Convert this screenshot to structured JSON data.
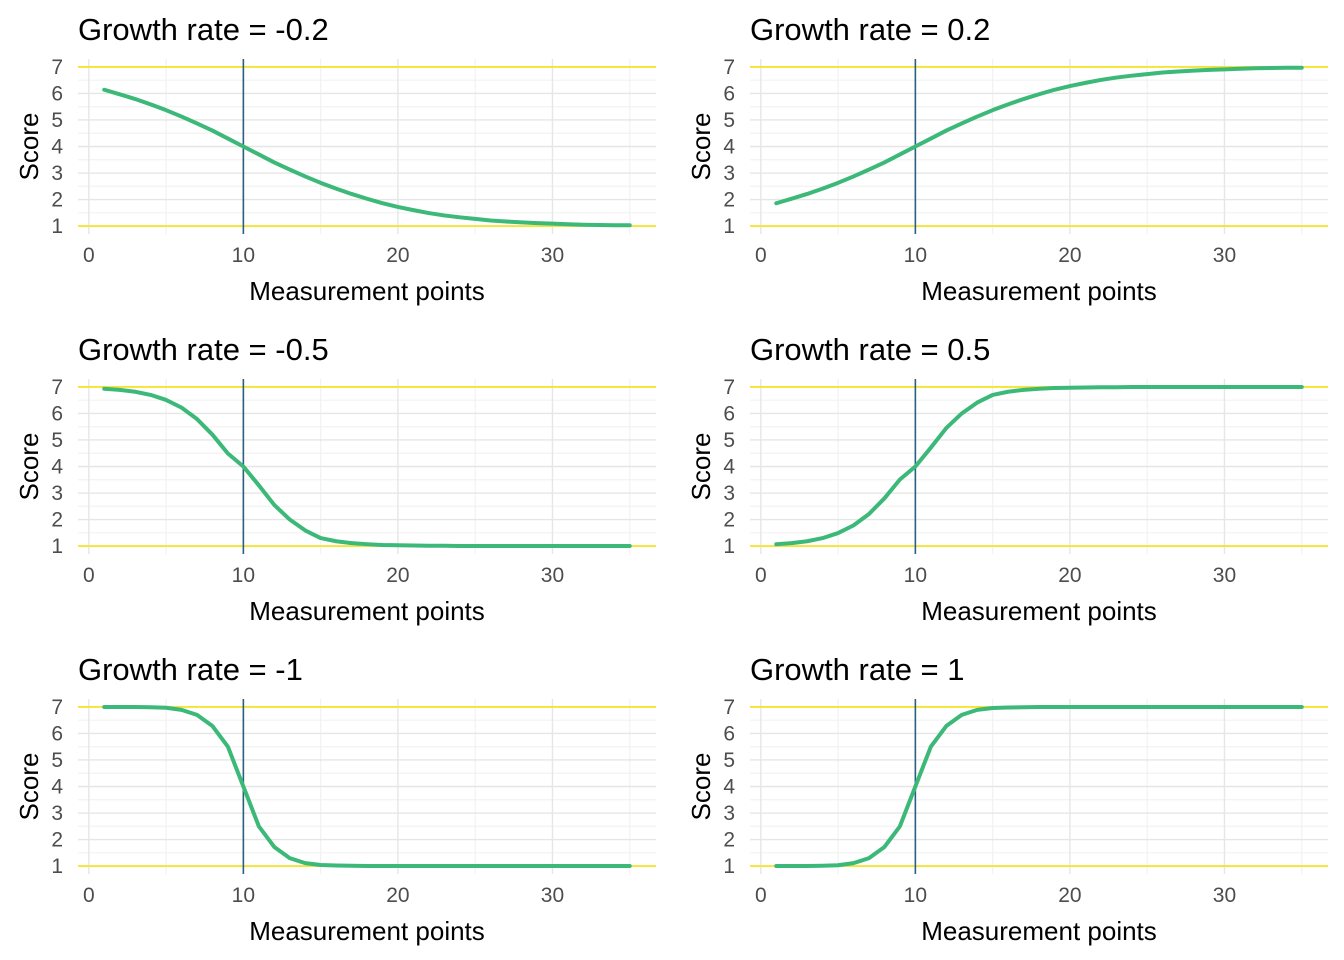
{
  "colors": {
    "curve": "#3cb878",
    "bound": "#f5e532",
    "midline": "#2b5f80",
    "grid_major": "#e6e6e6",
    "grid_minor": "#f2f2f2",
    "tick_text": "#4d4d4d"
  },
  "chart_data": [
    {
      "type": "line",
      "title": "Growth rate = -0.2",
      "growth_rate": -0.2,
      "xlabel": "Measurement points",
      "ylabel": "Score",
      "xlim": [
        -0.7,
        36.7
      ],
      "ylim": [
        0.7,
        7.3
      ],
      "x_ticks": [
        "0",
        "10",
        "20",
        "30"
      ],
      "y_ticks": [
        "1",
        "2",
        "3",
        "4",
        "5",
        "6",
        "7"
      ],
      "upper_bound": 7,
      "lower_bound": 1,
      "midpoint_x": 10,
      "grid": true,
      "x": [
        1,
        2,
        3,
        4,
        5,
        6,
        7,
        8,
        9,
        10,
        11,
        12,
        13,
        14,
        15,
        16,
        17,
        18,
        19,
        20,
        21,
        22,
        23,
        24,
        25,
        26,
        27,
        28,
        29,
        30,
        31,
        32,
        33,
        34,
        35
      ],
      "y": [
        6.14,
        5.97,
        5.79,
        5.59,
        5.37,
        5.13,
        4.87,
        4.6,
        4.3,
        4.0,
        3.7,
        3.4,
        3.13,
        2.87,
        2.63,
        2.41,
        2.21,
        2.03,
        1.86,
        1.72,
        1.6,
        1.49,
        1.4,
        1.33,
        1.27,
        1.21,
        1.17,
        1.14,
        1.11,
        1.09,
        1.07,
        1.05,
        1.04,
        1.03,
        1.03
      ]
    },
    {
      "type": "line",
      "title": "Growth rate = 0.2",
      "growth_rate": 0.2,
      "xlabel": "Measurement points",
      "ylabel": "Score",
      "xlim": [
        -0.7,
        36.7
      ],
      "ylim": [
        0.7,
        7.3
      ],
      "x_ticks": [
        "0",
        "10",
        "20",
        "30"
      ],
      "y_ticks": [
        "1",
        "2",
        "3",
        "4",
        "5",
        "6",
        "7"
      ],
      "upper_bound": 7,
      "lower_bound": 1,
      "midpoint_x": 10,
      "grid": true,
      "x": [
        1,
        2,
        3,
        4,
        5,
        6,
        7,
        8,
        9,
        10,
        11,
        12,
        13,
        14,
        15,
        16,
        17,
        18,
        19,
        20,
        21,
        22,
        23,
        24,
        25,
        26,
        27,
        28,
        29,
        30,
        31,
        32,
        33,
        34,
        35
      ],
      "y": [
        1.86,
        2.03,
        2.21,
        2.41,
        2.63,
        2.87,
        3.13,
        3.4,
        3.7,
        4.0,
        4.3,
        4.6,
        4.87,
        5.13,
        5.37,
        5.59,
        5.79,
        5.97,
        6.14,
        6.28,
        6.4,
        6.51,
        6.6,
        6.67,
        6.73,
        6.79,
        6.83,
        6.86,
        6.89,
        6.91,
        6.93,
        6.95,
        6.96,
        6.97,
        6.97
      ]
    },
    {
      "type": "line",
      "title": "Growth rate = -0.5",
      "growth_rate": -0.5,
      "xlabel": "Measurement points",
      "ylabel": "Score",
      "xlim": [
        -0.7,
        36.7
      ],
      "ylim": [
        0.7,
        7.3
      ],
      "x_ticks": [
        "0",
        "10",
        "20",
        "30"
      ],
      "y_ticks": [
        "1",
        "2",
        "3",
        "4",
        "5",
        "6",
        "7"
      ],
      "upper_bound": 7,
      "lower_bound": 1,
      "midpoint_x": 10,
      "grid": true,
      "x": [
        1,
        2,
        3,
        4,
        5,
        6,
        7,
        8,
        9,
        10,
        11,
        12,
        13,
        14,
        15,
        16,
        17,
        18,
        19,
        20,
        21,
        22,
        23,
        24,
        25,
        26,
        27,
        28,
        29,
        30,
        31,
        32,
        33,
        34,
        35
      ],
      "y": [
        6.93,
        6.89,
        6.82,
        6.7,
        6.51,
        6.22,
        5.79,
        5.2,
        4.49,
        4.0,
        3.29,
        2.55,
        2.0,
        1.59,
        1.3,
        1.18,
        1.11,
        1.07,
        1.04,
        1.03,
        1.02,
        1.01,
        1.01,
        1.0,
        1.0,
        1.0,
        1.0,
        1.0,
        1.0,
        1.0,
        1.0,
        1.0,
        1.0,
        1.0,
        1.0
      ]
    },
    {
      "type": "line",
      "title": "Growth rate = 0.5",
      "growth_rate": 0.5,
      "xlabel": "Measurement points",
      "ylabel": "Score",
      "xlim": [
        -0.7,
        36.7
      ],
      "ylim": [
        0.7,
        7.3
      ],
      "x_ticks": [
        "0",
        "10",
        "20",
        "30"
      ],
      "y_ticks": [
        "1",
        "2",
        "3",
        "4",
        "5",
        "6",
        "7"
      ],
      "upper_bound": 7,
      "lower_bound": 1,
      "midpoint_x": 10,
      "grid": true,
      "x": [
        1,
        2,
        3,
        4,
        5,
        6,
        7,
        8,
        9,
        10,
        11,
        12,
        13,
        14,
        15,
        16,
        17,
        18,
        19,
        20,
        21,
        22,
        23,
        24,
        25,
        26,
        27,
        28,
        29,
        30,
        31,
        32,
        33,
        34,
        35
      ],
      "y": [
        1.07,
        1.11,
        1.18,
        1.3,
        1.49,
        1.78,
        2.21,
        2.8,
        3.51,
        4.0,
        4.71,
        5.45,
        6.0,
        6.41,
        6.7,
        6.82,
        6.89,
        6.93,
        6.96,
        6.97,
        6.98,
        6.99,
        6.99,
        7.0,
        7.0,
        7.0,
        7.0,
        7.0,
        7.0,
        7.0,
        7.0,
        7.0,
        7.0,
        7.0,
        7.0
      ]
    },
    {
      "type": "line",
      "title": "Growth rate = -1",
      "growth_rate": -1,
      "xlabel": "Measurement points",
      "ylabel": "Score",
      "xlim": [
        -0.7,
        36.7
      ],
      "ylim": [
        0.7,
        7.3
      ],
      "x_ticks": [
        "0",
        "10",
        "20",
        "30"
      ],
      "y_ticks": [
        "1",
        "2",
        "3",
        "4",
        "5",
        "6",
        "7"
      ],
      "upper_bound": 7,
      "lower_bound": 1,
      "midpoint_x": 10,
      "grid": true,
      "x": [
        1,
        2,
        3,
        4,
        5,
        6,
        7,
        8,
        9,
        10,
        11,
        12,
        13,
        14,
        15,
        16,
        17,
        18,
        19,
        20,
        21,
        22,
        23,
        24,
        25,
        26,
        27,
        28,
        29,
        30,
        31,
        32,
        33,
        34,
        35
      ],
      "y": [
        7.0,
        7.0,
        7.0,
        6.99,
        6.97,
        6.89,
        6.7,
        6.28,
        5.5,
        4.0,
        2.5,
        1.72,
        1.3,
        1.11,
        1.04,
        1.02,
        1.01,
        1.0,
        1.0,
        1.0,
        1.0,
        1.0,
        1.0,
        1.0,
        1.0,
        1.0,
        1.0,
        1.0,
        1.0,
        1.0,
        1.0,
        1.0,
        1.0,
        1.0,
        1.0
      ]
    },
    {
      "type": "line",
      "title": "Growth rate = 1",
      "growth_rate": 1,
      "xlabel": "Measurement points",
      "ylabel": "Score",
      "xlim": [
        -0.7,
        36.7
      ],
      "ylim": [
        0.7,
        7.3
      ],
      "x_ticks": [
        "0",
        "10",
        "20",
        "30"
      ],
      "y_ticks": [
        "1",
        "2",
        "3",
        "4",
        "5",
        "6",
        "7"
      ],
      "upper_bound": 7,
      "lower_bound": 1,
      "midpoint_x": 10,
      "grid": true,
      "x": [
        1,
        2,
        3,
        4,
        5,
        6,
        7,
        8,
        9,
        10,
        11,
        12,
        13,
        14,
        15,
        16,
        17,
        18,
        19,
        20,
        21,
        22,
        23,
        24,
        25,
        26,
        27,
        28,
        29,
        30,
        31,
        32,
        33,
        34,
        35
      ],
      "y": [
        1.0,
        1.0,
        1.0,
        1.01,
        1.03,
        1.11,
        1.3,
        1.72,
        2.5,
        4.0,
        5.5,
        6.28,
        6.7,
        6.89,
        6.96,
        6.98,
        6.99,
        7.0,
        7.0,
        7.0,
        7.0,
        7.0,
        7.0,
        7.0,
        7.0,
        7.0,
        7.0,
        7.0,
        7.0,
        7.0,
        7.0,
        7.0,
        7.0,
        7.0,
        7.0
      ]
    }
  ]
}
